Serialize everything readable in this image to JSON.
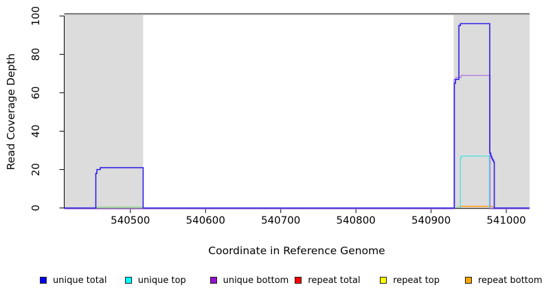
{
  "chart_data": {
    "type": "line",
    "title": "",
    "xlabel": "Coordinate in Reference Genome",
    "ylabel": "Read Coverage Depth",
    "xlim": [
      540412,
      541031
    ],
    "ylim": [
      0,
      100
    ],
    "x_ticks": [
      540500,
      540600,
      540700,
      540800,
      540900,
      541000
    ],
    "y_ticks": [
      0,
      20,
      40,
      60,
      80,
      100
    ],
    "grid": false,
    "legend_position": "bottom",
    "background": "#ffffff",
    "shaded_regions": [
      {
        "x0": 540412,
        "x1": 540517,
        "color": "#dcdcdc"
      },
      {
        "x0": 540930,
        "x1": 541031,
        "color": "#dcdcdc"
      }
    ],
    "reference_bar": {
      "x0": 540412,
      "x1": 541031,
      "color": "#8e8e8e",
      "edge_color": "#6f6f6f"
    },
    "series": [
      {
        "name": "annotation-green-left",
        "color": "#8fd78f",
        "width": 1.3,
        "in_legend": false,
        "points": [
          [
            540454,
            0.5
          ],
          [
            540517,
            0.5
          ]
        ]
      },
      {
        "name": "annotation-green-right",
        "color": "#8fd78f",
        "width": 1.3,
        "in_legend": false,
        "points": [
          [
            540933,
            0.5
          ],
          [
            540939,
            0.5
          ]
        ]
      },
      {
        "name": "repeat bottom",
        "color": "#ff9e19",
        "width": 1.6,
        "in_legend": true,
        "points": [
          [
            540939,
            0.8
          ],
          [
            540981,
            0.8
          ]
        ]
      },
      {
        "name": "repeat total",
        "color": "#ef6e86",
        "width": 1.3,
        "in_legend": true,
        "points": [
          [
            540981,
            0.6
          ],
          [
            540984,
            0.6
          ]
        ]
      },
      {
        "name": "repeat top",
        "color": "#ffff00",
        "width": 1.3,
        "in_legend": true,
        "points": []
      },
      {
        "name": "unique top",
        "color": "#53dfe0",
        "width": 1.4,
        "in_legend": true,
        "points": [
          [
            540939,
            0
          ],
          [
            540939,
            26
          ],
          [
            540940,
            26
          ],
          [
            540940,
            27
          ],
          [
            540977.5,
            27
          ],
          [
            540977.5,
            0
          ]
        ]
      },
      {
        "name": "unique bottom",
        "color": "#b27ae0",
        "width": 1.3,
        "in_legend": true,
        "points": [
          [
            540412,
            -0.5
          ],
          [
            540930.5,
            -0.5
          ],
          [
            540930.5,
            67
          ],
          [
            540933,
            67
          ],
          [
            540933,
            68
          ],
          [
            540940,
            68
          ],
          [
            540940,
            69
          ],
          [
            540978.5,
            69
          ],
          [
            540978.5,
            -0.5
          ],
          [
            541031,
            -0.5
          ]
        ]
      },
      {
        "name": "unique total",
        "color": "#2c1ee8",
        "width": 1.6,
        "in_legend": true,
        "points": [
          [
            540412,
            0
          ],
          [
            540454,
            0
          ],
          [
            540454,
            18
          ],
          [
            540455.5,
            18
          ],
          [
            540455.5,
            20
          ],
          [
            540460,
            20
          ],
          [
            540460,
            21
          ],
          [
            540517,
            21
          ],
          [
            540517,
            0
          ],
          [
            540931,
            0
          ],
          [
            540931,
            65
          ],
          [
            540932.5,
            65
          ],
          [
            540932.5,
            67
          ],
          [
            540937,
            67
          ],
          [
            540937,
            95
          ],
          [
            540939,
            95
          ],
          [
            540939,
            96
          ],
          [
            540978,
            96
          ],
          [
            540978,
            28.5
          ],
          [
            540979.5,
            28.5
          ],
          [
            540979.5,
            27
          ],
          [
            540980.5,
            27
          ],
          [
            540980.5,
            26
          ],
          [
            540981.5,
            26
          ],
          [
            540981.5,
            25
          ],
          [
            540983,
            25
          ],
          [
            540983,
            24
          ],
          [
            540984,
            24
          ],
          [
            540984,
            0
          ],
          [
            541031,
            0
          ]
        ]
      }
    ],
    "legend": [
      {
        "label": "unique total",
        "color": "#0000f0"
      },
      {
        "label": "unique top",
        "color": "#00ffff"
      },
      {
        "label": "unique bottom",
        "color": "#9410d3"
      },
      {
        "label": "repeat total",
        "color": "#ff0000"
      },
      {
        "label": "repeat top",
        "color": "#ffff00"
      },
      {
        "label": "repeat bottom",
        "color": "#ffa500"
      }
    ]
  }
}
